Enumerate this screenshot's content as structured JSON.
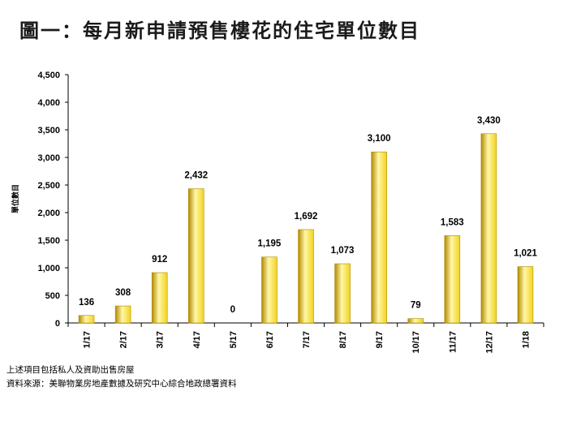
{
  "page": {
    "title": "圖一：每月新申請預售樓花的住宅單位數目",
    "note1": "上述項目包括私人及資助出售房屋",
    "note2": "資料來源：美聯物業房地產數據及研究中心綜合地政總署資料"
  },
  "chart_data": {
    "type": "bar",
    "title": "圖一：每月新申請預售樓花的住宅單位數目",
    "xlabel": "",
    "ylabel": "單位數目",
    "categories": [
      "1/17",
      "2/17",
      "3/17",
      "4/17",
      "5/17",
      "6/17",
      "7/17",
      "8/17",
      "9/17",
      "10/17",
      "11/17",
      "12/17",
      "1/18"
    ],
    "values": [
      136,
      308,
      912,
      2432,
      0,
      1195,
      1692,
      1073,
      3100,
      79,
      1583,
      3430,
      1021
    ],
    "data_labels": [
      "136",
      "308",
      "912",
      "2,432",
      "0",
      "1,195",
      "1,692",
      "1,073",
      "3,100",
      "79",
      "1,583",
      "3,430",
      "1,021"
    ],
    "ylim": [
      0,
      4500
    ],
    "yticks": [
      "0",
      "500",
      "1,000",
      "1,500",
      "2,000",
      "2,500",
      "3,000",
      "3,500",
      "4,000",
      "4,500"
    ],
    "grid": false,
    "legend": "none",
    "colors": {
      "bar_light": "#fff7a8",
      "bar_mid": "#f2d21e",
      "bar_dark": "#b28a00"
    }
  }
}
